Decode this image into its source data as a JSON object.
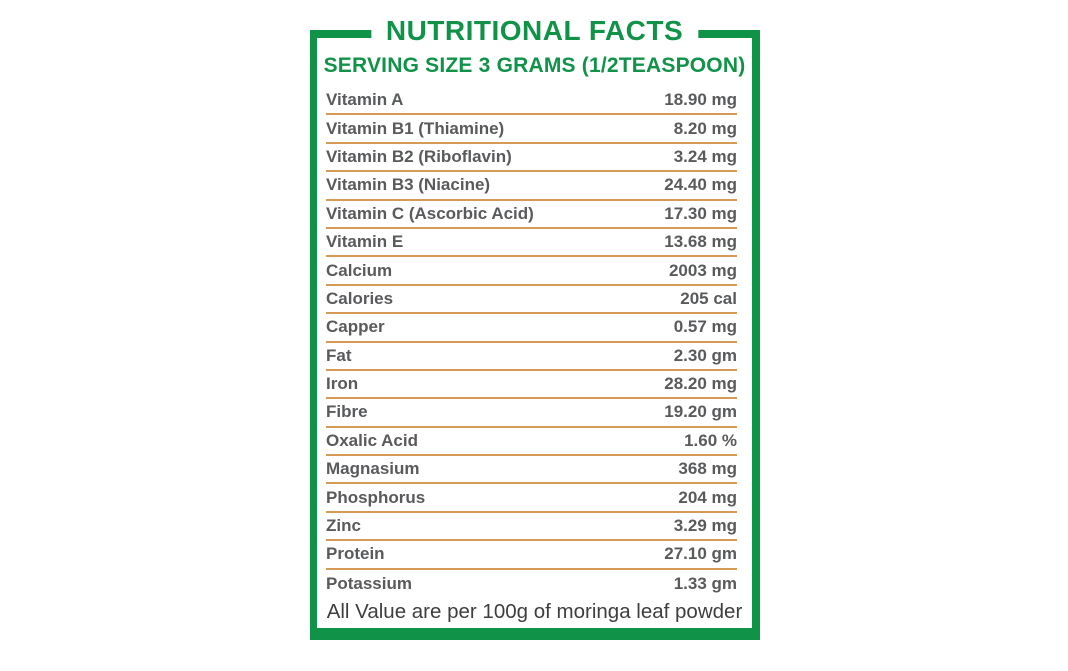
{
  "label": {
    "title": "NUTRITIONAL FACTS",
    "serving_line": "SERVING SIZE 3 GRAMS (1/2TEASPOON)",
    "footnote": "All Value are per 100g of moringa leaf powder",
    "rows": [
      {
        "name": "Vitamin A",
        "value": "18.90 mg"
      },
      {
        "name": "Vitamin B1 (Thiamine)",
        "value": "8.20 mg"
      },
      {
        "name": "Vitamin B2 (Riboflavin)",
        "value": "3.24 mg"
      },
      {
        "name": "Vitamin B3 (Niacine)",
        "value": "24.40 mg"
      },
      {
        "name": "Vitamin C (Ascorbic Acid)",
        "value": "17.30 mg"
      },
      {
        "name": "Vitamin E",
        "value": "13.68 mg"
      },
      {
        "name": "Calcium",
        "value": "2003 mg"
      },
      {
        "name": "Calories",
        "value": "205 cal"
      },
      {
        "name": "Capper",
        "value": "0.57 mg"
      },
      {
        "name": "Fat",
        "value": "2.30 gm"
      },
      {
        "name": "Iron",
        "value": "28.20 mg"
      },
      {
        "name": "Fibre",
        "value": "19.20 gm"
      },
      {
        "name": "Oxalic Acid",
        "value": "1.60 %"
      },
      {
        "name": "Magnasium",
        "value": "368 mg"
      },
      {
        "name": "Phosphorus",
        "value": "204 mg"
      },
      {
        "name": "Zinc",
        "value": "3.29 mg"
      },
      {
        "name": "Protein",
        "value": "27.10 gm"
      },
      {
        "name": "Potassium",
        "value": "1.33 gm"
      }
    ],
    "colors": {
      "border_green": "#109348",
      "divider_tan": "#D59A55",
      "text_gray": "#595A5C",
      "footnote_gray": "#3E3E3E"
    }
  }
}
